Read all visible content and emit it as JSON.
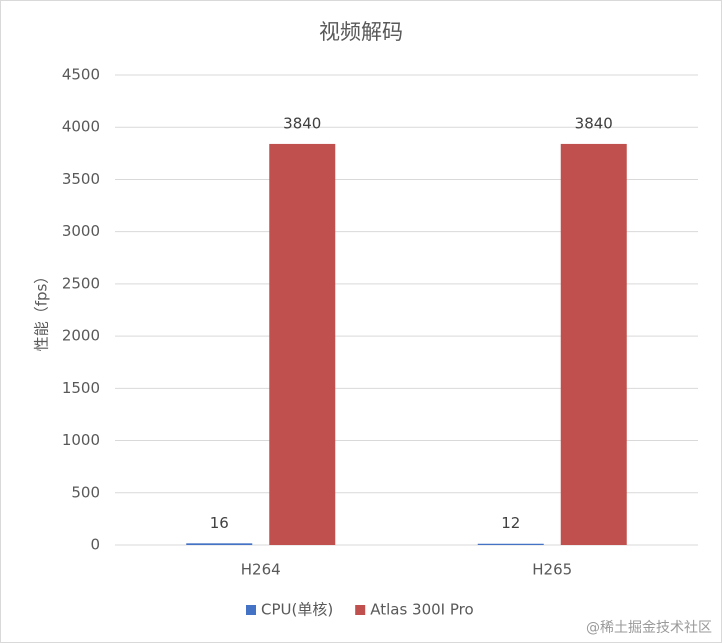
{
  "chart_data": {
    "type": "bar",
    "title": "视频解码",
    "y_label": "性能（fps）",
    "categories": [
      "H264",
      "H265"
    ],
    "series": [
      {
        "name": "CPU(单核)",
        "color": "#4472c4",
        "values": [
          16,
          12
        ]
      },
      {
        "name": "Atlas 300I Pro",
        "color": "#c0504d",
        "values": [
          3840,
          3840
        ]
      }
    ],
    "ylim": [
      0,
      4500
    ],
    "yticks": [
      0,
      500,
      1000,
      1500,
      2000,
      2500,
      3000,
      3500,
      4000,
      4500
    ],
    "grid": true,
    "legend": "bottom",
    "watermark": "@稀土掘金技术社区"
  }
}
